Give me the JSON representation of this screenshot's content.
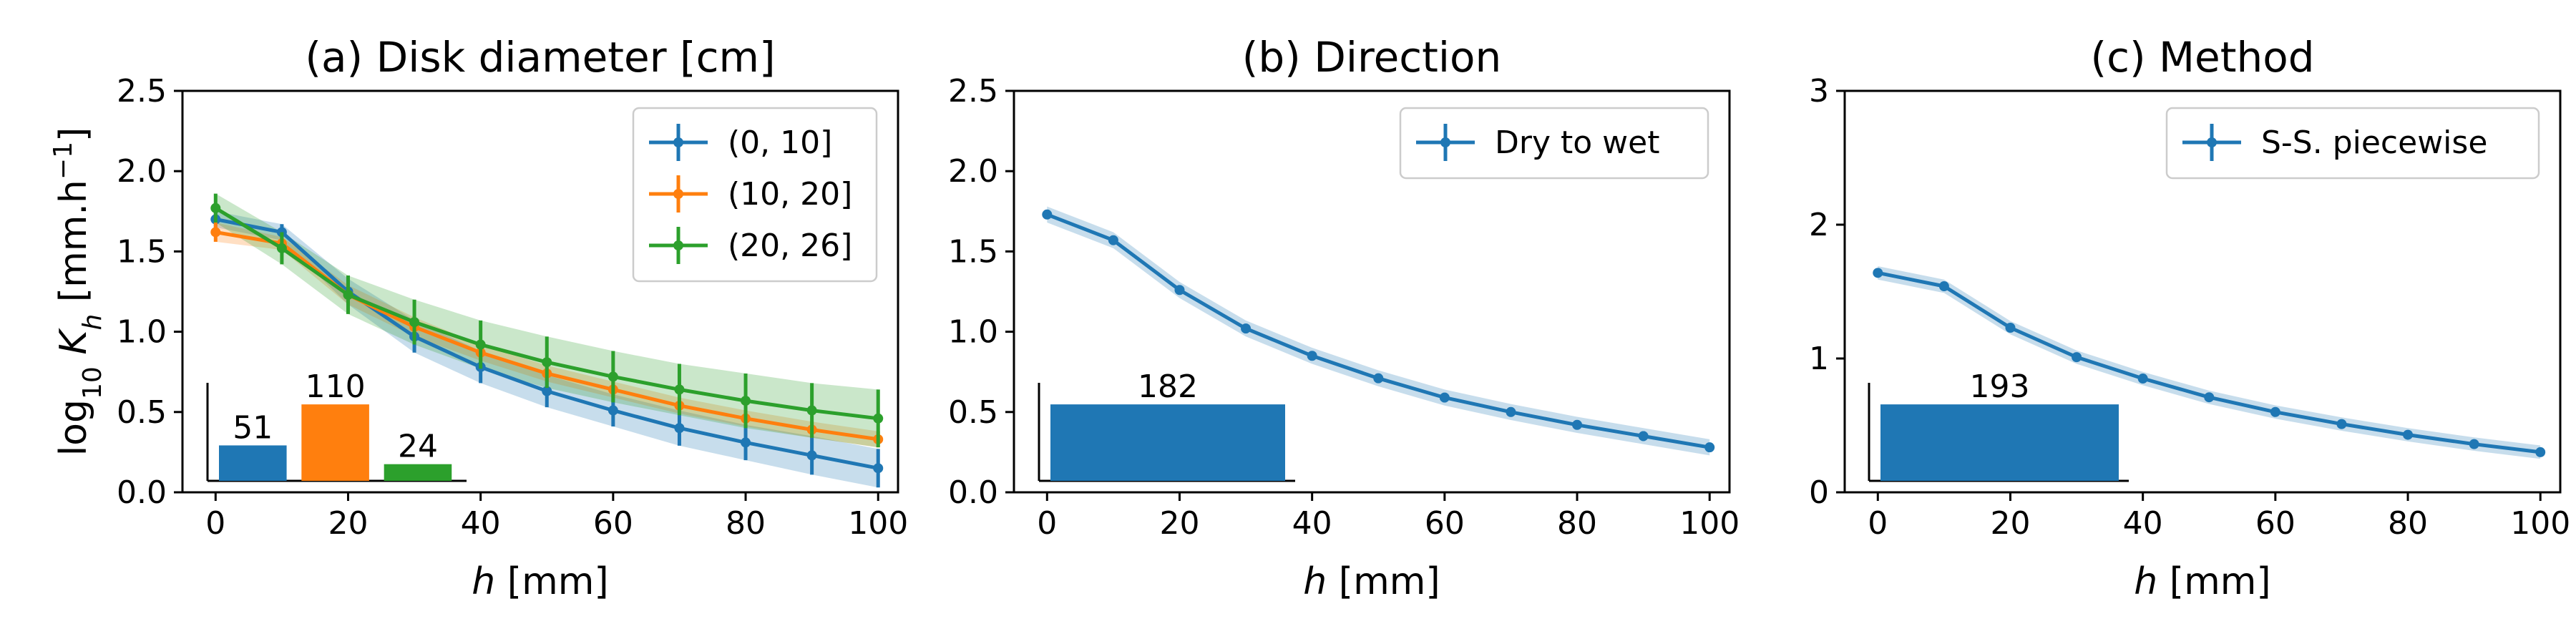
{
  "colors": {
    "blue": "#1f77b4",
    "orange": "#ff7f0e",
    "green": "#2ca02c"
  },
  "chart_data": [
    {
      "type": "line",
      "title": "(a) Disk diameter [cm]",
      "xlabel": "h [mm]",
      "ylabel": "log10 Kh [mm.h−1]",
      "xlim": [
        -5,
        103
      ],
      "ylim": [
        0,
        2.5
      ],
      "xticks": [
        0,
        20,
        40,
        60,
        80,
        100
      ],
      "xtick_labels": [
        "0",
        "20",
        "40",
        "60",
        "80",
        "100"
      ],
      "yticks": [
        0,
        0.5,
        1.0,
        1.5,
        2.0,
        2.5
      ],
      "ytick_labels": [
        "0.0",
        "0.5",
        "1.0",
        "1.5",
        "2.0",
        "2.5"
      ],
      "legend": "top-right",
      "x": [
        0,
        10,
        20,
        30,
        40,
        50,
        60,
        70,
        80,
        90,
        100
      ],
      "series": [
        {
          "name": "(0, 10]",
          "color": "#1f77b4",
          "values": [
            1.7,
            1.62,
            1.25,
            0.97,
            0.78,
            0.63,
            0.51,
            0.4,
            0.31,
            0.23,
            0.15
          ],
          "err": [
            0.05,
            0.05,
            0.08,
            0.1,
            0.1,
            0.1,
            0.1,
            0.11,
            0.11,
            0.12,
            0.12
          ],
          "band": [
            0.05,
            0.05,
            0.08,
            0.1,
            0.1,
            0.1,
            0.1,
            0.11,
            0.11,
            0.12,
            0.12
          ]
        },
        {
          "name": "(10, 20]",
          "color": "#ff7f0e",
          "values": [
            1.62,
            1.55,
            1.23,
            1.03,
            0.87,
            0.74,
            0.64,
            0.54,
            0.46,
            0.39,
            0.33
          ],
          "err": [
            0.06,
            0.04,
            0.06,
            0.06,
            0.05,
            0.05,
            0.05,
            0.05,
            0.05,
            0.05,
            0.05
          ],
          "band": [
            0.06,
            0.04,
            0.06,
            0.06,
            0.05,
            0.05,
            0.05,
            0.05,
            0.05,
            0.05,
            0.05
          ]
        },
        {
          "name": "(20, 26]",
          "color": "#2ca02c",
          "values": [
            1.77,
            1.52,
            1.23,
            1.06,
            0.92,
            0.81,
            0.72,
            0.64,
            0.57,
            0.51,
            0.46
          ],
          "err": [
            0.09,
            0.1,
            0.12,
            0.14,
            0.15,
            0.16,
            0.16,
            0.16,
            0.17,
            0.17,
            0.18
          ],
          "band": [
            0.09,
            0.1,
            0.12,
            0.14,
            0.15,
            0.16,
            0.16,
            0.16,
            0.17,
            0.17,
            0.18
          ]
        }
      ],
      "inset_bars": {
        "type": "bar",
        "values": [
          51,
          110,
          24
        ],
        "labels": [
          "51",
          "110",
          "24"
        ],
        "colors": [
          "#1f77b4",
          "#ff7f0e",
          "#2ca02c"
        ]
      }
    },
    {
      "type": "line",
      "title": "(b) Direction",
      "xlabel": "h [mm]",
      "ylabel": "",
      "xlim": [
        -5,
        103
      ],
      "ylim": [
        0,
        2.5
      ],
      "xticks": [
        0,
        20,
        40,
        60,
        80,
        100
      ],
      "xtick_labels": [
        "0",
        "20",
        "40",
        "60",
        "80",
        "100"
      ],
      "yticks": [
        0,
        0.5,
        1.0,
        1.5,
        2.0,
        2.5
      ],
      "ytick_labels": [
        "0.0",
        "0.5",
        "1.0",
        "1.5",
        "2.0",
        "2.5"
      ],
      "legend": "top-right",
      "x": [
        0,
        10,
        20,
        30,
        40,
        50,
        60,
        70,
        80,
        90,
        100
      ],
      "series": [
        {
          "name": "Dry to wet",
          "color": "#1f77b4",
          "values": [
            1.73,
            1.57,
            1.26,
            1.02,
            0.85,
            0.71,
            0.59,
            0.5,
            0.42,
            0.35,
            0.28
          ],
          "err": [
            0.03,
            0.03,
            0.03,
            0.03,
            0.03,
            0.03,
            0.03,
            0.03,
            0.03,
            0.03,
            0.03
          ],
          "band": [
            0.05,
            0.05,
            0.05,
            0.05,
            0.05,
            0.05,
            0.05,
            0.05,
            0.05,
            0.05,
            0.05
          ]
        }
      ],
      "inset_bars": {
        "type": "bar",
        "values": [
          182
        ],
        "labels": [
          "182"
        ],
        "colors": [
          "#1f77b4"
        ]
      }
    },
    {
      "type": "line",
      "title": "(c) Method",
      "xlabel": "h [mm]",
      "ylabel": "",
      "xlim": [
        -5,
        103
      ],
      "ylim": [
        0,
        3
      ],
      "xticks": [
        0,
        20,
        40,
        60,
        80,
        100
      ],
      "xtick_labels": [
        "0",
        "20",
        "40",
        "60",
        "80",
        "100"
      ],
      "yticks": [
        0,
        1,
        2,
        3
      ],
      "ytick_labels": [
        "0",
        "1",
        "2",
        "3"
      ],
      "legend": "top-right",
      "x": [
        0,
        10,
        20,
        30,
        40,
        50,
        60,
        70,
        80,
        90,
        100
      ],
      "series": [
        {
          "name": "S-S. piecewise",
          "color": "#1f77b4",
          "values": [
            1.64,
            1.54,
            1.23,
            1.01,
            0.85,
            0.71,
            0.6,
            0.51,
            0.43,
            0.36,
            0.3
          ],
          "err": [
            0.03,
            0.03,
            0.03,
            0.03,
            0.03,
            0.03,
            0.03,
            0.03,
            0.03,
            0.03,
            0.03
          ],
          "band": [
            0.05,
            0.05,
            0.05,
            0.05,
            0.05,
            0.05,
            0.05,
            0.05,
            0.05,
            0.05,
            0.05
          ]
        }
      ],
      "inset_bars": {
        "type": "bar",
        "values": [
          193
        ],
        "labels": [
          "193"
        ],
        "colors": [
          "#1f77b4"
        ]
      }
    }
  ]
}
